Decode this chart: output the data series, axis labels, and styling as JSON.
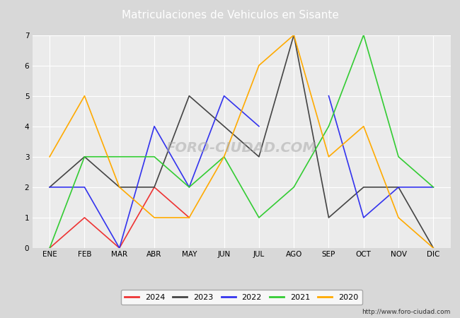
{
  "title": "Matriculaciones de Vehiculos en Sisante",
  "months": [
    "ENE",
    "FEB",
    "MAR",
    "ABR",
    "MAY",
    "JUN",
    "JUL",
    "AGO",
    "SEP",
    "OCT",
    "NOV",
    "DIC"
  ],
  "series": {
    "2024": {
      "values": [
        0,
        1,
        0,
        2,
        1,
        null,
        null,
        null,
        null,
        null,
        null,
        null
      ],
      "color": "#ee3333",
      "linewidth": 1.2
    },
    "2023": {
      "values": [
        2,
        3,
        2,
        2,
        5,
        4,
        3,
        7,
        1,
        2,
        2,
        0
      ],
      "color": "#444444",
      "linewidth": 1.2
    },
    "2022": {
      "values": [
        2,
        2,
        0,
        4,
        2,
        5,
        4,
        null,
        5,
        1,
        2,
        2
      ],
      "color": "#3333ee",
      "linewidth": 1.2
    },
    "2021": {
      "values": [
        0,
        3,
        3,
        3,
        2,
        3,
        1,
        2,
        4,
        7,
        3,
        2
      ],
      "color": "#33cc33",
      "linewidth": 1.2
    },
    "2020": {
      "values": [
        3,
        5,
        2,
        1,
        1,
        3,
        6,
        7,
        3,
        4,
        1,
        0
      ],
      "color": "#ffaa00",
      "linewidth": 1.2
    }
  },
  "ylim": [
    0,
    7
  ],
  "yticks": [
    0.0,
    1.0,
    2.0,
    3.0,
    4.0,
    5.0,
    6.0,
    7.0
  ],
  "outer_bg_color": "#d8d8d8",
  "plot_bg_color": "#ebebeb",
  "title_bg_color": "#5580cc",
  "title_color": "white",
  "grid_color": "#ffffff",
  "url": "http://www.foro-ciudad.com",
  "legend_years": [
    "2024",
    "2023",
    "2022",
    "2021",
    "2020"
  ],
  "title_fontsize": 11,
  "tick_fontsize": 7.5,
  "legend_fontsize": 8
}
